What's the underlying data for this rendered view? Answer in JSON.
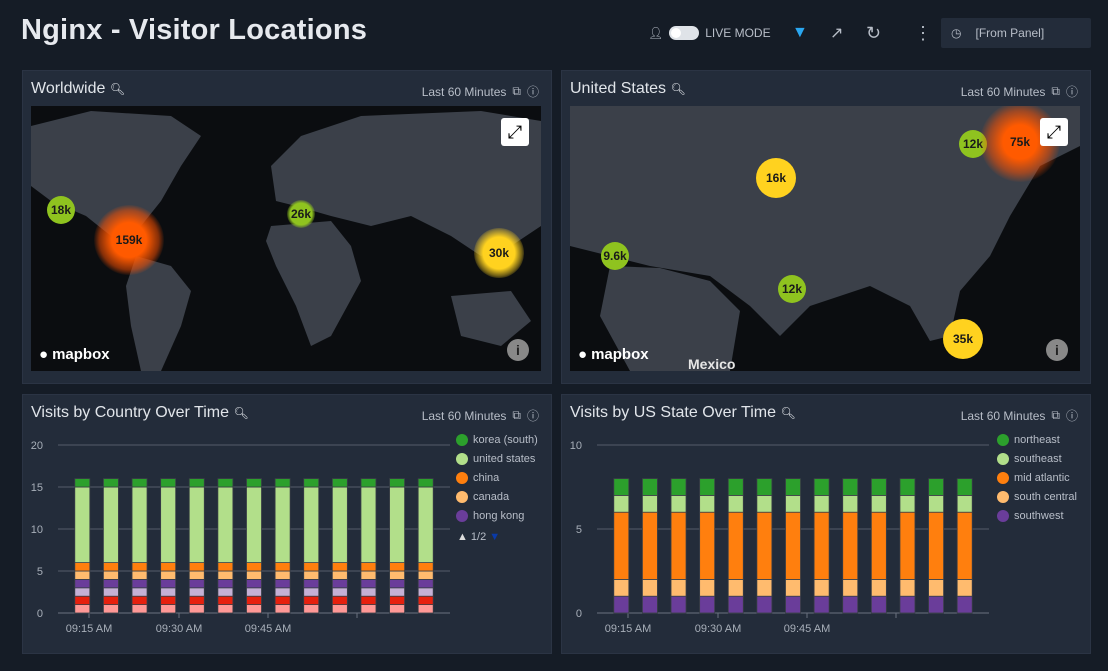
{
  "header": {
    "title": "Nginx - Visitor Locations",
    "live_mode": "LIVE MODE",
    "time_range": "[From Panel]"
  },
  "panels": {
    "worldwide": {
      "title": "Worldwide",
      "range": "Last 60 Minutes",
      "markers": [
        "18k",
        "159k",
        "26k",
        "30k"
      ],
      "attribution": "mapbox"
    },
    "us": {
      "title": "United States",
      "range": "Last 60 Minutes",
      "markers": [
        "12k",
        "75k",
        "16k",
        "9.6k",
        "12k",
        "35k"
      ],
      "attribution": "mapbox",
      "label": "Mexico"
    },
    "country": {
      "title": "Visits by Country Over Time",
      "range": "Last 60 Minutes",
      "pager": "1/2"
    },
    "state": {
      "title": "Visits by US State Over Time",
      "range": "Last 60 Minutes"
    }
  },
  "chart_data": [
    {
      "type": "bar",
      "stacked": true,
      "title": "Visits by Country Over Time",
      "ylim": [
        0,
        20
      ],
      "yticks": [
        0,
        5,
        10,
        15,
        20
      ],
      "xticks": [
        "09:15 AM",
        "09:30 AM",
        "09:45 AM",
        ""
      ],
      "bars": 13,
      "grid": true,
      "legend": "right",
      "series": [
        {
          "name": "",
          "color": "#ff9896",
          "values": [
            1,
            1,
            1,
            1,
            1,
            1,
            1,
            1,
            1,
            1,
            1,
            1,
            1
          ]
        },
        {
          "name": "",
          "color": "#e6200e",
          "values": [
            1,
            1,
            1,
            1,
            1,
            1,
            1,
            1,
            1,
            1,
            1,
            1,
            1
          ]
        },
        {
          "name": "",
          "color": "#c5b0d5",
          "values": [
            1,
            1,
            1,
            1,
            1,
            1,
            1,
            1,
            1,
            1,
            1,
            1,
            1
          ]
        },
        {
          "name": "hong kong",
          "color": "#6a3d9a",
          "values": [
            1,
            1,
            1,
            1,
            1,
            1,
            1,
            1,
            1,
            1,
            1,
            1,
            1
          ]
        },
        {
          "name": "canada",
          "color": "#ffbb6e",
          "values": [
            1,
            1,
            1,
            1,
            1,
            1,
            1,
            1,
            1,
            1,
            1,
            1,
            1
          ]
        },
        {
          "name": "china",
          "color": "#ff7f0e",
          "values": [
            1,
            1,
            1,
            1,
            1,
            1,
            1,
            1,
            1,
            1,
            1,
            1,
            1
          ]
        },
        {
          "name": "united states",
          "color": "#b2df8a",
          "values": [
            9,
            9,
            9,
            9,
            9,
            9,
            9,
            9,
            9,
            9,
            9,
            9,
            9
          ]
        },
        {
          "name": "korea (south)",
          "color": "#2ca02c",
          "values": [
            1,
            1,
            1,
            1,
            1,
            1,
            1,
            1,
            1,
            1,
            1,
            1,
            1
          ]
        }
      ]
    },
    {
      "type": "bar",
      "stacked": true,
      "title": "Visits by US State Over Time",
      "ylim": [
        0,
        10
      ],
      "yticks": [
        0,
        5,
        10
      ],
      "xticks": [
        "09:15 AM",
        "09:30 AM",
        "09:45 AM",
        ""
      ],
      "bars": 13,
      "grid": true,
      "legend": "right",
      "series": [
        {
          "name": "southwest",
          "color": "#6a3d9a",
          "values": [
            1,
            1,
            1,
            1,
            1,
            1,
            1,
            1,
            1,
            1,
            1,
            1,
            1
          ]
        },
        {
          "name": "south central",
          "color": "#ffbb6e",
          "values": [
            1,
            1,
            1,
            1,
            1,
            1,
            1,
            1,
            1,
            1,
            1,
            1,
            1
          ]
        },
        {
          "name": "mid atlantic",
          "color": "#ff7f0e",
          "values": [
            4,
            4,
            4,
            4,
            4,
            4,
            4,
            4,
            4,
            4,
            4,
            4,
            4
          ]
        },
        {
          "name": "southeast",
          "color": "#b2df8a",
          "values": [
            1,
            1,
            1,
            1,
            1,
            1,
            1,
            1,
            1,
            1,
            1,
            1,
            1
          ]
        },
        {
          "name": "northeast",
          "color": "#2ca02c",
          "values": [
            1,
            1,
            1,
            1,
            1,
            1,
            1,
            1,
            1,
            1,
            1,
            1,
            1
          ]
        }
      ]
    }
  ]
}
